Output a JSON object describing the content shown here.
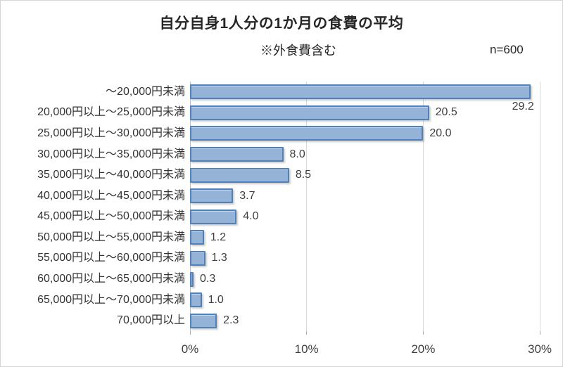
{
  "chart_data": {
    "type": "bar",
    "orientation": "horizontal",
    "title": "自分自身1人分の1か月の食費の平均",
    "subtitle": "※外食費含む",
    "annotation": "n=600",
    "categories": [
      "～20,000円未満",
      "20,000円以上～25,000円未満",
      "25,000円以上～30,000円未満",
      "30,000円以上～35,000円未満",
      "35,000円以上～40,000円未満",
      "40,000円以上～45,000円未満",
      "45,000円以上～50,000円未満",
      "50,000円以上～55,000円未満",
      "55,000円以上～60,000円未満",
      "60,000円以上～65,000円未満",
      "65,000円以上～70,000円未満",
      "70,000円以上"
    ],
    "values": [
      29.2,
      20.5,
      20.0,
      8.0,
      8.5,
      3.7,
      4.0,
      1.2,
      1.3,
      0.3,
      1.0,
      2.3
    ],
    "data_labels": [
      "29.2",
      "20.5",
      "20.0",
      "8.0",
      "8.5",
      "3.7",
      "4.0",
      "1.2",
      "1.3",
      "0.3",
      "1.0",
      "2.3"
    ],
    "label_positions": [
      "below-end",
      "right",
      "right",
      "right",
      "right",
      "right",
      "right",
      "right",
      "right",
      "right",
      "right",
      "right"
    ],
    "xlabel": "",
    "ylabel": "",
    "xlim": [
      0,
      30
    ],
    "x_ticks": [
      {
        "label": "0%",
        "value": 0
      },
      {
        "label": "10%",
        "value": 10
      },
      {
        "label": "20%",
        "value": 20
      },
      {
        "label": "30%",
        "value": 30
      }
    ],
    "grid": true,
    "legend": false,
    "colors": {
      "bar_fill": "#95b3d7",
      "bar_border": "#4f81bd",
      "gridline": "#d9d9d9",
      "axis_line": "#bfbfbf",
      "text": "#3f3f3f"
    }
  }
}
